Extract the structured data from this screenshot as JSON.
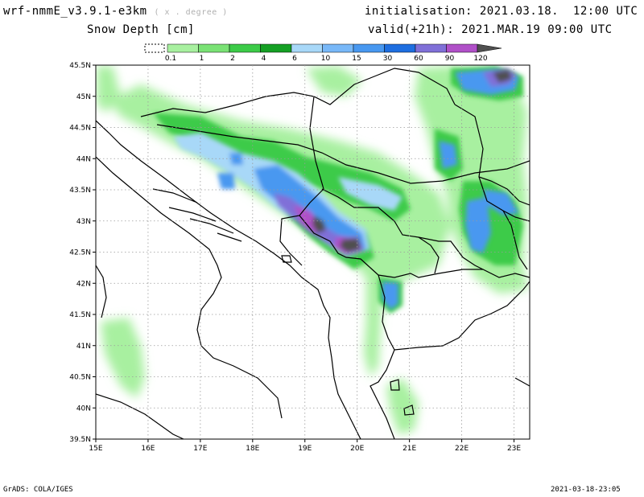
{
  "header": {
    "model": "wrf-nmmE_v3.9.1-e3km",
    "grid_unit": "( x . degree )",
    "variable": "Snow Depth [cm]",
    "initialisation": "initialisation: 2021.03.18.  12:00 UTC",
    "valid": "valid(+21h): 2021.MAR.19 09:00 UTC"
  },
  "colorbar": {
    "levels": [
      "0.1",
      "1",
      "2",
      "4",
      "6",
      "10",
      "15",
      "30",
      "60",
      "90",
      "120"
    ],
    "colors": [
      "#a8f0a0",
      "#7ae275",
      "#3ccb48",
      "#15a024",
      "#a8d8f8",
      "#78b8f8",
      "#4898f0",
      "#1e6ee0",
      "#8070d8",
      "#b050c8",
      "#505050"
    ]
  },
  "map": {
    "x_ticks": [
      "15E",
      "16E",
      "17E",
      "18E",
      "19E",
      "20E",
      "21E",
      "22E",
      "23E"
    ],
    "y_ticks": [
      "45.5N",
      "45N",
      "44.5N",
      "44N",
      "43.5N",
      "43N",
      "42.5N",
      "42N",
      "41.5N",
      "41N",
      "40.5N",
      "40N",
      "39.5N"
    ],
    "lon_range": [
      15,
      23.3
    ],
    "lat_range": [
      39.5,
      45.5
    ]
  },
  "footer": {
    "left": "GrADS: COLA/IGES",
    "right": "2021-03-18-23:05"
  }
}
